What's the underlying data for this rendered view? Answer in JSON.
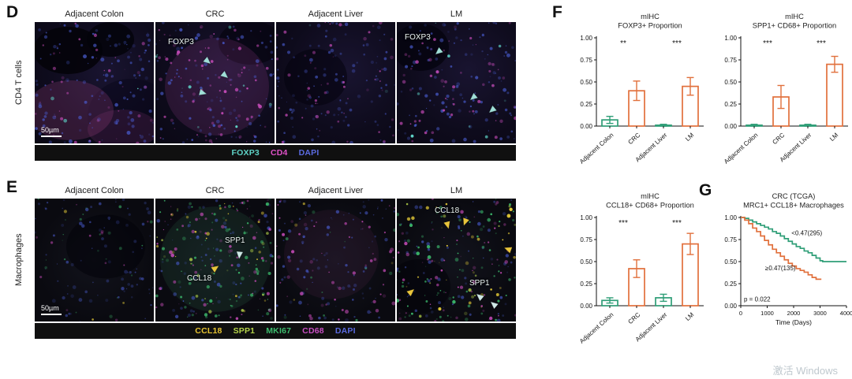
{
  "panel_d": {
    "label": "D",
    "row_label": "CD4 T cells",
    "columns": [
      "Adjacent Colon",
      "CRC",
      "Adjacent Liver",
      "LM"
    ],
    "scale_bar": "50µm",
    "image_annotations": {
      "crc_foxp3": "FOXP3",
      "lm_foxp3": "FOXP3"
    },
    "legend": [
      {
        "label": "FOXP3",
        "color": "#5ed2c6"
      },
      {
        "label": "CD4",
        "color": "#e051c8"
      },
      {
        "label": "DAPI",
        "color": "#5a6ae0"
      }
    ]
  },
  "panel_e": {
    "label": "E",
    "row_label": "Macrophages",
    "columns": [
      "Adjacent Colon",
      "CRC",
      "Adjacent Liver",
      "LM"
    ],
    "scale_bar": "50µm",
    "image_annotations": {
      "crc_spp1": "SPP1",
      "crc_ccl18": "CCL18",
      "lm_ccl18": "CCL18",
      "lm_spp1": "SPP1"
    },
    "legend": [
      {
        "label": "CCL18",
        "color": "#e8c531"
      },
      {
        "label": "SPP1",
        "color": "#b5d44a"
      },
      {
        "label": "MKI67",
        "color": "#3dbd6e"
      },
      {
        "label": "CD68",
        "color": "#c94fc4"
      },
      {
        "label": "DAPI",
        "color": "#5a6ae0"
      }
    ]
  },
  "panel_f": {
    "label": "F"
  },
  "panel_g": {
    "label": "G"
  },
  "watermark": {
    "text": "激活 Windows"
  },
  "chart_data": [
    {
      "type": "bar",
      "title_lines": [
        "mIHC",
        "FOXP3+ Proportion"
      ],
      "categories": [
        "Adjacent Colon",
        "CRC",
        "Adjacent Liver",
        "LM"
      ],
      "values": [
        0.07,
        0.4,
        0.01,
        0.45
      ],
      "errors": [
        0.04,
        0.11,
        0.01,
        0.1
      ],
      "bar_colors": [
        "#2f9e77",
        "#e1703c",
        "#2f9e77",
        "#e1703c"
      ],
      "ylim": [
        0,
        1
      ],
      "yticks": [
        "0.00",
        "0.25",
        "0.50",
        "0.75",
        "1.00"
      ],
      "significance": [
        {
          "between": [
            0,
            1
          ],
          "label": "**"
        },
        {
          "between": [
            2,
            3
          ],
          "label": "***"
        }
      ]
    },
    {
      "type": "bar",
      "title_lines": [
        "mIHC",
        "SPP1+ CD68+ Proportion"
      ],
      "categories": [
        "Adjacent Colon",
        "CRC",
        "Adjacent Liver",
        "LM"
      ],
      "values": [
        0.01,
        0.33,
        0.01,
        0.7
      ],
      "errors": [
        0.01,
        0.13,
        0.01,
        0.09
      ],
      "bar_colors": [
        "#2f9e77",
        "#e1703c",
        "#2f9e77",
        "#e1703c"
      ],
      "ylim": [
        0,
        1
      ],
      "yticks": [
        "0.00",
        "0.25",
        "0.50",
        "0.75",
        "1.00"
      ],
      "significance": [
        {
          "between": [
            0,
            1
          ],
          "label": "***"
        },
        {
          "between": [
            2,
            3
          ],
          "label": "***"
        }
      ]
    },
    {
      "type": "bar",
      "title_lines": [
        "mIHC",
        "CCL18+ CD68+ Proportion"
      ],
      "categories": [
        "Adjacent Colon",
        "CRC",
        "Adjacent Liver",
        "LM"
      ],
      "values": [
        0.06,
        0.42,
        0.09,
        0.7
      ],
      "errors": [
        0.03,
        0.1,
        0.04,
        0.12
      ],
      "bar_colors": [
        "#2f9e77",
        "#e1703c",
        "#2f9e77",
        "#e1703c"
      ],
      "ylim": [
        0,
        1
      ],
      "yticks": [
        "0.00",
        "0.25",
        "0.50",
        "0.75",
        "1.00"
      ],
      "significance": [
        {
          "between": [
            0,
            1
          ],
          "label": "***"
        },
        {
          "between": [
            2,
            3
          ],
          "label": "***"
        }
      ]
    },
    {
      "type": "km",
      "title_lines": [
        "CRC (TCGA)",
        "MRC1+ CCL18+ Macrophages"
      ],
      "xlabel": "Time (Days)",
      "xlim": [
        0,
        4000
      ],
      "ylim": [
        0,
        1
      ],
      "xticks": [
        0,
        1000,
        2000,
        3000,
        4000
      ],
      "yticks": [
        "0.00",
        "0.25",
        "0.50",
        "0.75",
        "1.00"
      ],
      "p_value": "p = 0.022",
      "series": [
        {
          "name": "<0.47(295)",
          "color": "#2f9e77",
          "label_at": [
            2500,
            0.8
          ],
          "points": [
            [
              0,
              1.0
            ],
            [
              150,
              0.99
            ],
            [
              300,
              0.97
            ],
            [
              450,
              0.95
            ],
            [
              600,
              0.93
            ],
            [
              750,
              0.91
            ],
            [
              900,
              0.89
            ],
            [
              1050,
              0.87
            ],
            [
              1200,
              0.84
            ],
            [
              1350,
              0.82
            ],
            [
              1500,
              0.79
            ],
            [
              1650,
              0.76
            ],
            [
              1800,
              0.73
            ],
            [
              1950,
              0.7
            ],
            [
              2100,
              0.67
            ],
            [
              2250,
              0.65
            ],
            [
              2400,
              0.62
            ],
            [
              2550,
              0.6
            ],
            [
              2700,
              0.57
            ],
            [
              2850,
              0.54
            ],
            [
              3000,
              0.51
            ],
            [
              3100,
              0.5
            ],
            [
              4000,
              0.5
            ]
          ]
        },
        {
          "name": "≥0.47(135)",
          "color": "#e1703c",
          "label_at": [
            1500,
            0.4
          ],
          "points": [
            [
              0,
              1.0
            ],
            [
              150,
              0.97
            ],
            [
              300,
              0.93
            ],
            [
              450,
              0.88
            ],
            [
              600,
              0.84
            ],
            [
              750,
              0.79
            ],
            [
              900,
              0.74
            ],
            [
              1050,
              0.69
            ],
            [
              1200,
              0.64
            ],
            [
              1350,
              0.6
            ],
            [
              1500,
              0.56
            ],
            [
              1650,
              0.52
            ],
            [
              1800,
              0.48
            ],
            [
              1950,
              0.45
            ],
            [
              2100,
              0.42
            ],
            [
              2250,
              0.4
            ],
            [
              2400,
              0.38
            ],
            [
              2550,
              0.35
            ],
            [
              2700,
              0.32
            ],
            [
              2850,
              0.3
            ],
            [
              3050,
              0.3
            ]
          ]
        }
      ]
    }
  ]
}
